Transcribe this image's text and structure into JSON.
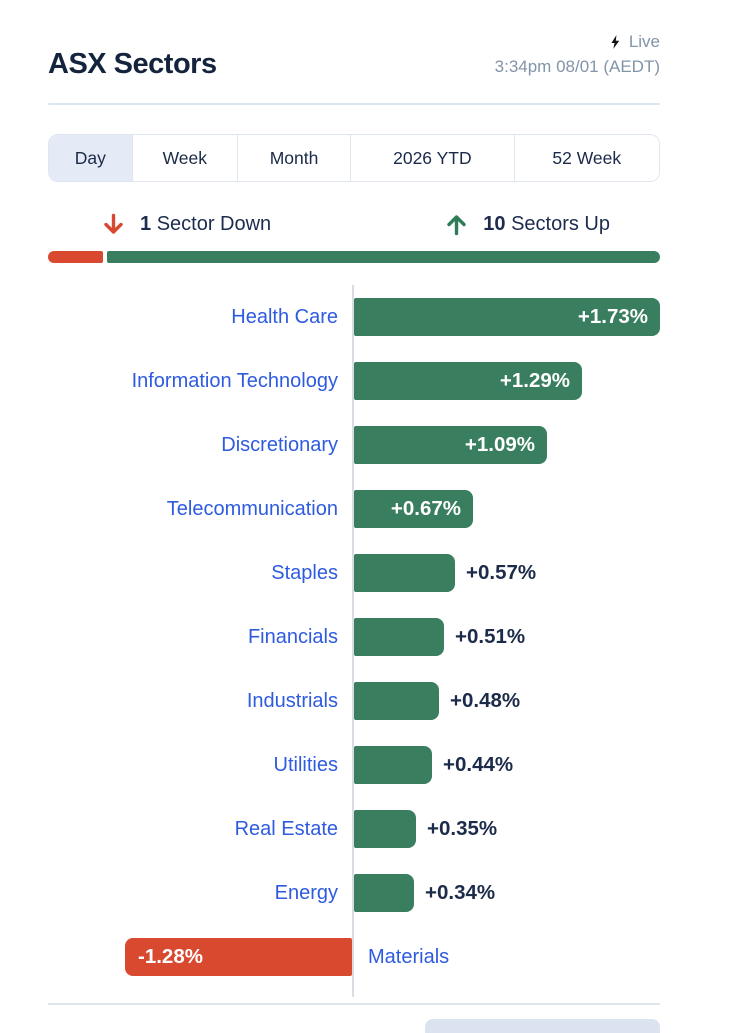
{
  "header": {
    "title": "ASX Sectors",
    "live_label": "Live",
    "timestamp": "3:34pm 08/01 (AEDT)"
  },
  "tabs": [
    {
      "label": "Day",
      "active": true
    },
    {
      "label": "Week",
      "active": false
    },
    {
      "label": "Month",
      "active": false
    },
    {
      "label": "2026 YTD",
      "active": false
    },
    {
      "label": "52 Week",
      "active": false
    }
  ],
  "summary": {
    "down_count": "1",
    "down_label": "Sector Down",
    "up_count": "10",
    "up_label": "Sectors Up"
  },
  "colors": {
    "up_green": "#387e5f",
    "down_red": "#d8492f",
    "link_blue": "#2e5bdf",
    "dark_text": "#1b2b49",
    "muted_text": "#8294a9"
  },
  "chart_data": {
    "type": "bar",
    "orientation": "horizontal",
    "title": "ASX Sectors - Day change",
    "unit": "%",
    "xlim": [
      -1.5,
      1.8
    ],
    "grid": false,
    "categories": [
      "Health Care",
      "Information Technology",
      "Discretionary",
      "Telecommunication",
      "Staples",
      "Financials",
      "Industrials",
      "Utilities",
      "Real Estate",
      "Energy",
      "Materials"
    ],
    "values": [
      1.73,
      1.29,
      1.09,
      0.67,
      0.57,
      0.51,
      0.48,
      0.44,
      0.35,
      0.34,
      -1.28
    ],
    "value_labels": [
      "+1.73%",
      "+1.29%",
      "+1.09%",
      "+0.67%",
      "+0.57%",
      "+0.51%",
      "+0.48%",
      "+0.44%",
      "+0.35%",
      "+0.34%",
      "-1.28%"
    ]
  }
}
